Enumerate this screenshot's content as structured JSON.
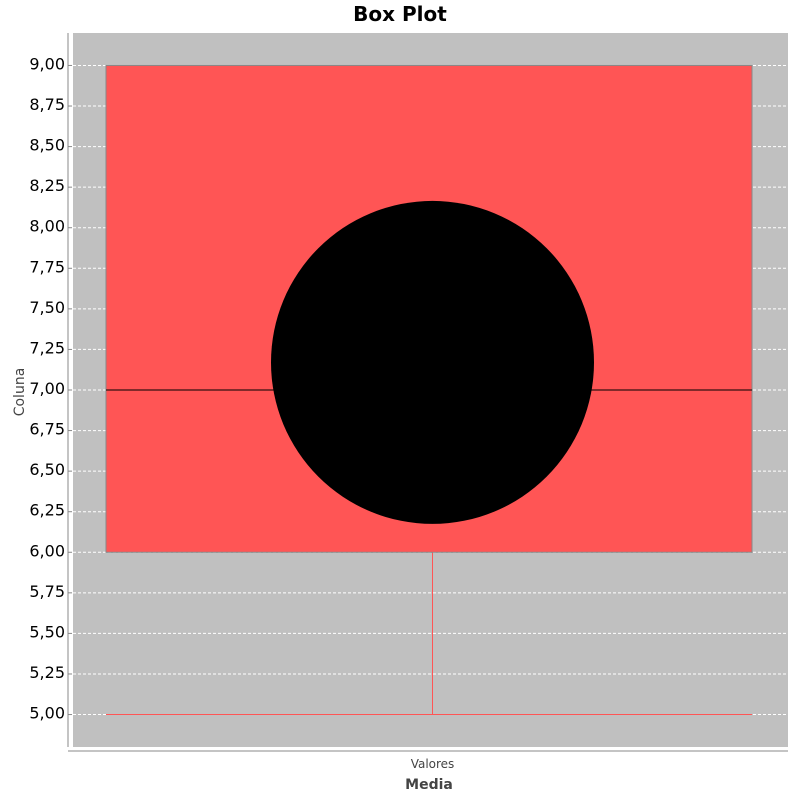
{
  "chart_data": {
    "type": "boxplot",
    "title": "Box Plot",
    "xlabel": "Media",
    "ylabel": "Coluna",
    "categories": [
      "Valores"
    ],
    "series": [
      {
        "name": "Valores",
        "min": 5.0,
        "q1": 6.0,
        "median": 7.0,
        "q3": 9.0,
        "max": 9.0,
        "mean": 7.17
      }
    ],
    "ylim": [
      4.8,
      9.2
    ],
    "yticks": [
      "5,00",
      "5,25",
      "5,50",
      "5,75",
      "6,00",
      "6,25",
      "6,50",
      "6,75",
      "7,00",
      "7,25",
      "7,50",
      "7,75",
      "8,00",
      "8,25",
      "8,50",
      "8,75",
      "9,00"
    ],
    "grid": true,
    "colors": {
      "box": "#ff5555",
      "plot_bg": "#c0c0c0",
      "mean_marker": "#000000",
      "whisker": "#ff5555"
    }
  }
}
